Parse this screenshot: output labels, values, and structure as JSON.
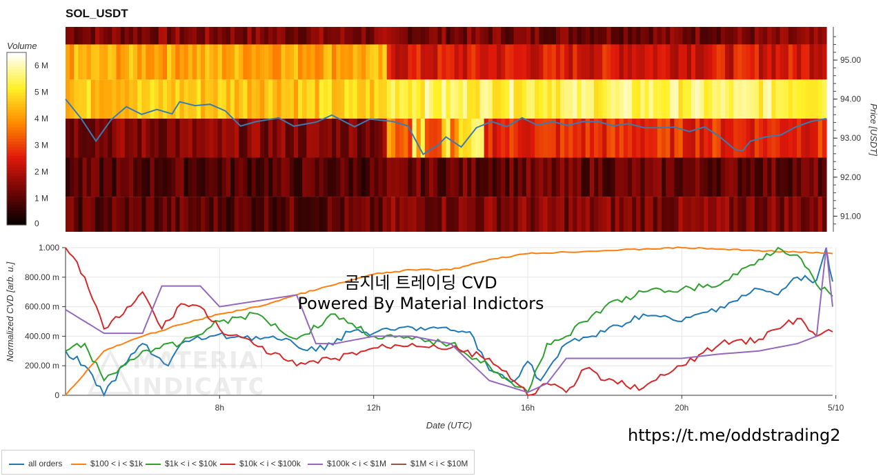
{
  "title": "SOL_USDT",
  "overlay_title": "곰지네 트레이딩 CVD",
  "overlay_subtitle": "Powered By Material Indictors",
  "link_text": "https://t.me/oddstrading2",
  "watermark": {
    "line1": "MATERIAL",
    "line2": "INDICATORS"
  },
  "colors": {
    "all_orders": "#1f77b4",
    "usd100_1k": "#ff7f0e",
    "usd1k_10k": "#2ca02c",
    "usd10k_100k": "#d62728",
    "usd100k_1m": "#9467bd",
    "usd1m_10m": "#8c564b"
  },
  "chart_data": [
    {
      "type": "heatmap",
      "title": "SOL_USDT",
      "ylabel": "Price [USDT]",
      "colorbar": {
        "label": "Volume",
        "ticks": [
          "0",
          "1 M",
          "2 M",
          "3 M",
          "4 M",
          "5 M",
          "6 M"
        ],
        "range": [
          0,
          6500000
        ],
        "colorscale": [
          "black",
          "red",
          "orange",
          "yellow",
          "white"
        ]
      },
      "yticks": [
        "91.00",
        "92.00",
        "93.00",
        "94.00",
        "95.00"
      ],
      "ylim": [
        90.6,
        95.85
      ],
      "price_bins": [
        91.0,
        92.0,
        93.0,
        94.0,
        95.0,
        95.8
      ],
      "time_breaks": [
        0.42
      ],
      "bins_rel_level_before_after": {
        "95.8": [
          1.5,
          1.4
        ],
        "95.0": [
          4.3,
          2.5
        ],
        "94.0": [
          4.7,
          5.5
        ],
        "93.0": [
          1.5,
          2.8
        ],
        "92.0": [
          1.0,
          1.2
        ],
        "91.0": [
          1.1,
          1.5
        ]
      },
      "price_series": {
        "name": "Price",
        "x": [
          0,
          0.02,
          0.04,
          0.06,
          0.08,
          0.1,
          0.12,
          0.14,
          0.15,
          0.17,
          0.19,
          0.21,
          0.23,
          0.25,
          0.28,
          0.3,
          0.33,
          0.35,
          0.38,
          0.4,
          0.43,
          0.45,
          0.47,
          0.49,
          0.5,
          0.52,
          0.54,
          0.56,
          0.58,
          0.6,
          0.62,
          0.64,
          0.66,
          0.68,
          0.7,
          0.72,
          0.74,
          0.76,
          0.78,
          0.8,
          0.82,
          0.84,
          0.86,
          0.88,
          0.89,
          0.9,
          0.92,
          0.94,
          0.96,
          0.98,
          1.0
        ],
        "y": [
          94.0,
          93.5,
          92.9,
          93.5,
          93.8,
          93.6,
          93.7,
          93.6,
          93.9,
          93.8,
          93.9,
          93.7,
          93.3,
          93.4,
          93.5,
          93.3,
          93.4,
          93.6,
          93.3,
          93.5,
          93.4,
          93.3,
          92.6,
          92.8,
          93.0,
          92.8,
          93.3,
          93.4,
          93.3,
          93.5,
          93.3,
          93.4,
          93.3,
          93.4,
          93.4,
          93.3,
          93.4,
          93.3,
          93.3,
          93.3,
          93.2,
          93.3,
          93.0,
          92.7,
          92.7,
          92.9,
          93.0,
          93.1,
          93.3,
          93.4,
          93.5
        ]
      }
    },
    {
      "type": "line",
      "xlabel": "Date (UTC)",
      "ylabel": "Normalized CVD [arb. u.]",
      "xlim": [
        "04:00",
        "23:55"
      ],
      "ylim": [
        0,
        1
      ],
      "xticks": [
        "8h",
        "12h",
        "16h",
        "20h",
        "5/10"
      ],
      "yticks": [
        "0",
        "200.00 m",
        "400.00 m",
        "600.00 m",
        "800.00 m",
        "1.000"
      ],
      "legend_position": "bottom-left",
      "series": [
        {
          "name": "all orders",
          "x": [
            "04:00",
            "04:30",
            "05:00",
            "05:30",
            "06:00",
            "06:40",
            "07:00",
            "07:45",
            "08:30",
            "09:30",
            "10:30",
            "11:30",
            "12:00",
            "13:00",
            "14:00",
            "14:30",
            "15:00",
            "15:40",
            "16:00",
            "16:20",
            "17:00",
            "18:00",
            "19:00",
            "20:00",
            "21:00",
            "22:00",
            "22:30",
            "23:00",
            "23:30",
            "23:45",
            "23:55"
          ],
          "y": [
            0.3,
            0.2,
            0.0,
            0.2,
            0.35,
            0.2,
            0.35,
            0.4,
            0.4,
            0.38,
            0.3,
            0.44,
            0.42,
            0.46,
            0.44,
            0.43,
            0.17,
            0.1,
            0.23,
            0.1,
            0.35,
            0.43,
            0.55,
            0.5,
            0.6,
            0.72,
            0.68,
            0.8,
            0.78,
            1.0,
            0.77
          ]
        },
        {
          "name": "$100 < i < $1k",
          "x": [
            "04:00",
            "05:00",
            "06:00",
            "07:00",
            "08:00",
            "09:00",
            "10:00",
            "11:00",
            "12:00",
            "13:00",
            "14:00",
            "15:00",
            "16:00",
            "17:00",
            "18:00",
            "19:00",
            "20:00",
            "21:00",
            "22:00",
            "23:00",
            "23:55"
          ],
          "y": [
            0.0,
            0.3,
            0.4,
            0.48,
            0.55,
            0.6,
            0.68,
            0.75,
            0.82,
            0.85,
            0.85,
            0.92,
            0.96,
            0.97,
            0.98,
            0.99,
            1.0,
            0.99,
            0.98,
            0.97,
            0.96
          ]
        },
        {
          "name": "$1k < i < $10k",
          "x": [
            "04:00",
            "04:30",
            "05:00",
            "06:00",
            "07:00",
            "08:00",
            "09:00",
            "10:00",
            "11:00",
            "12:00",
            "13:00",
            "14:00",
            "15:00",
            "15:40",
            "16:00",
            "16:30",
            "17:00",
            "18:00",
            "19:00",
            "20:00",
            "21:00",
            "22:00",
            "22:30",
            "23:00",
            "23:30",
            "23:55"
          ],
          "y": [
            0.3,
            0.35,
            0.1,
            0.3,
            0.35,
            0.5,
            0.55,
            0.38,
            0.55,
            0.4,
            0.38,
            0.35,
            0.2,
            0.06,
            0.02,
            0.35,
            0.4,
            0.6,
            0.7,
            0.72,
            0.75,
            0.92,
            1.0,
            0.95,
            0.75,
            0.67
          ]
        },
        {
          "name": "$10k < i < $100k",
          "x": [
            "04:00",
            "04:30",
            "05:00",
            "05:30",
            "06:00",
            "06:30",
            "07:00",
            "07:30",
            "08:00",
            "09:00",
            "10:00",
            "11:00",
            "12:00",
            "13:00",
            "14:00",
            "15:00",
            "16:00",
            "16:30",
            "17:00",
            "17:30",
            "18:00",
            "19:00",
            "20:00",
            "21:00",
            "22:00",
            "23:00",
            "23:30",
            "23:55"
          ],
          "y": [
            1.0,
            0.8,
            0.45,
            0.55,
            0.7,
            0.45,
            0.62,
            0.6,
            0.45,
            0.33,
            0.2,
            0.25,
            0.32,
            0.35,
            0.32,
            0.25,
            0.0,
            0.08,
            0.02,
            0.18,
            0.1,
            0.05,
            0.2,
            0.35,
            0.38,
            0.52,
            0.4,
            0.43
          ]
        },
        {
          "name": "$100k < i < $1M",
          "x": [
            "04:00",
            "04:30",
            "05:00",
            "06:00",
            "06:30",
            "07:30",
            "08:00",
            "09:00",
            "10:00",
            "10:30",
            "11:00",
            "12:00",
            "13:00",
            "14:00",
            "15:00",
            "16:00",
            "16:30",
            "17:00",
            "18:00",
            "19:00",
            "20:00",
            "21:00",
            "22:00",
            "23:00",
            "23:30",
            "23:45",
            "23:55"
          ],
          "y": [
            0.58,
            0.5,
            0.42,
            0.42,
            0.74,
            0.74,
            0.6,
            0.64,
            0.68,
            0.35,
            0.35,
            0.4,
            0.4,
            0.35,
            0.1,
            0.02,
            0.08,
            0.25,
            0.25,
            0.25,
            0.25,
            0.28,
            0.3,
            0.35,
            0.4,
            1.0,
            0.6
          ]
        },
        {
          "name": "$1M < i < $10M",
          "x": [],
          "y": []
        }
      ]
    }
  ]
}
